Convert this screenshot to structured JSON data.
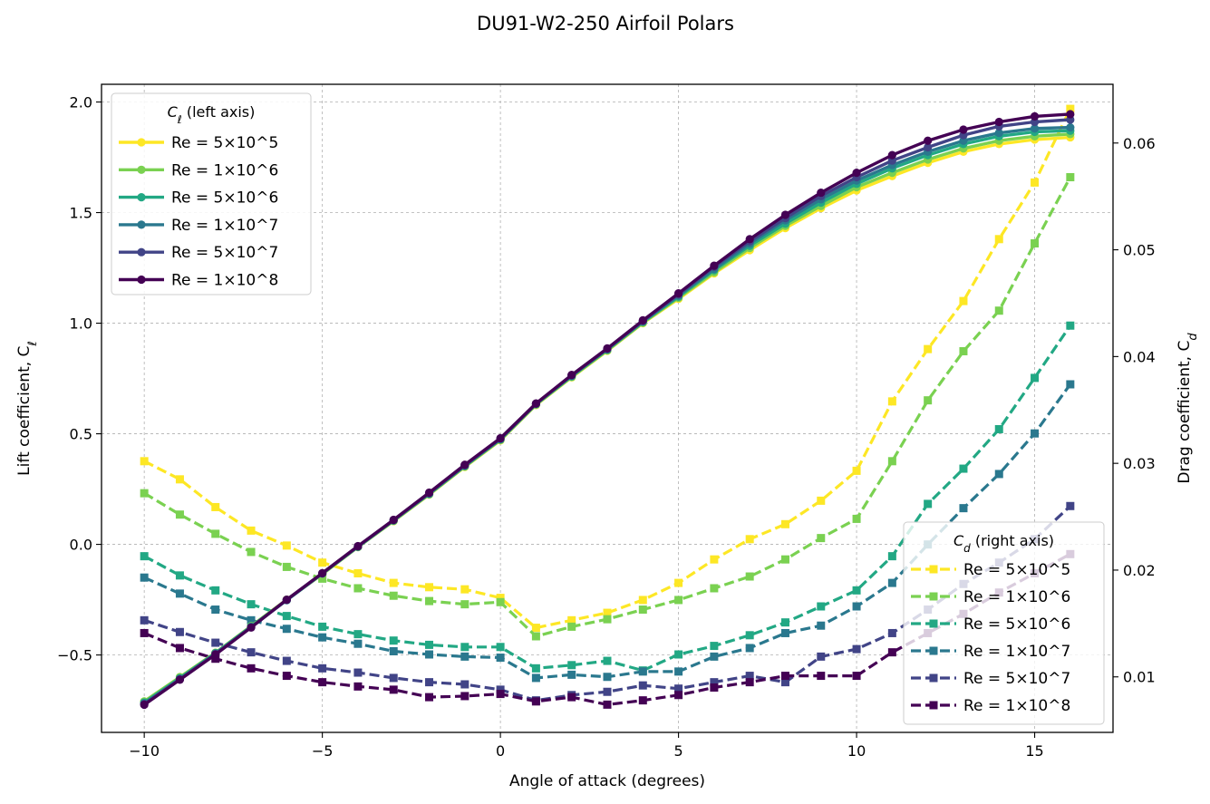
{
  "chart_data": {
    "type": "line",
    "title": "DU91-W2-250 Airfoil Polars",
    "xlabel": "Angle of attack (degrees)",
    "ylabel_left": "Lift coefficient, C",
    "ylabel_left_sub": "ℓ",
    "ylabel_right": "Drag coefficient, C",
    "ylabel_right_sub": "d",
    "xlim": [
      -11.2,
      17.2
    ],
    "ylim_left": [
      -0.85,
      2.08
    ],
    "ylim_right": [
      0.0048,
      0.0655
    ],
    "xticks": [
      -10,
      -5,
      0,
      5,
      10,
      15
    ],
    "xtick_labels": [
      "−10",
      "−5",
      "0",
      "5",
      "10",
      "15"
    ],
    "yticks_left": [
      -0.5,
      0.0,
      0.5,
      1.0,
      1.5,
      2.0
    ],
    "ytick_labels_left": [
      "−0.5",
      "0.0",
      "0.5",
      "1.0",
      "1.5",
      "2.0"
    ],
    "yticks_right": [
      0.01,
      0.02,
      0.03,
      0.04,
      0.05,
      0.06
    ],
    "ytick_labels_right": [
      "0.01",
      "0.02",
      "0.03",
      "0.04",
      "0.05",
      "0.06"
    ],
    "grid": true,
    "x": [
      -10,
      -9,
      -8,
      -7,
      -6,
      -5,
      -4,
      -3,
      -2,
      -1,
      0,
      1,
      2,
      3,
      4,
      5,
      6,
      7,
      8,
      9,
      10,
      11,
      12,
      13,
      14,
      15,
      16
    ],
    "legend_left": {
      "title": "C",
      "title_sub": "ℓ",
      "title_suffix": " (left axis)",
      "placement": "top-left"
    },
    "legend_right": {
      "title": "C",
      "title_sub": "d",
      "title_suffix": " (right axis)",
      "placement": "bottom-right"
    },
    "cl_series": [
      {
        "name": "Re = 5×10^5",
        "color": "#fde725",
        "values": [
          -0.71,
          -0.6,
          -0.49,
          -0.37,
          -0.25,
          -0.135,
          -0.012,
          0.105,
          0.225,
          0.35,
          0.47,
          0.63,
          0.755,
          0.875,
          1.0,
          1.11,
          1.225,
          1.33,
          1.43,
          1.52,
          1.6,
          1.665,
          1.725,
          1.775,
          1.81,
          1.83,
          1.84
        ]
      },
      {
        "name": "Re = 1×10^6",
        "color": "#7ad151",
        "values": [
          -0.71,
          -0.6,
          -0.49,
          -0.37,
          -0.25,
          -0.134,
          -0.012,
          0.106,
          0.226,
          0.352,
          0.472,
          0.632,
          0.757,
          0.877,
          1.002,
          1.115,
          1.23,
          1.34,
          1.44,
          1.53,
          1.615,
          1.68,
          1.74,
          1.79,
          1.825,
          1.845,
          1.855
        ]
      },
      {
        "name": "Re = 5×10^6",
        "color": "#22a884",
        "values": [
          -0.715,
          -0.605,
          -0.492,
          -0.372,
          -0.252,
          -0.133,
          -0.011,
          0.108,
          0.228,
          0.354,
          0.474,
          0.634,
          0.76,
          0.88,
          1.006,
          1.12,
          1.24,
          1.35,
          1.45,
          1.545,
          1.63,
          1.7,
          1.76,
          1.81,
          1.845,
          1.865,
          1.87
        ]
      },
      {
        "name": "Re = 1×10^7",
        "color": "#2a788e",
        "values": [
          -0.72,
          -0.608,
          -0.494,
          -0.374,
          -0.252,
          -0.132,
          -0.01,
          0.109,
          0.23,
          0.356,
          0.476,
          0.635,
          0.762,
          0.882,
          1.008,
          1.125,
          1.245,
          1.36,
          1.465,
          1.56,
          1.645,
          1.715,
          1.775,
          1.825,
          1.86,
          1.88,
          1.885
        ]
      },
      {
        "name": "Re = 5×10^7",
        "color": "#414487",
        "values": [
          -0.722,
          -0.61,
          -0.496,
          -0.375,
          -0.251,
          -0.131,
          -0.009,
          0.11,
          0.232,
          0.358,
          0.478,
          0.636,
          0.764,
          0.884,
          1.01,
          1.13,
          1.255,
          1.37,
          1.475,
          1.575,
          1.66,
          1.735,
          1.795,
          1.85,
          1.89,
          1.91,
          1.92
        ]
      },
      {
        "name": "Re = 1×10^8",
        "color": "#440154",
        "values": [
          -0.725,
          -0.612,
          -0.498,
          -0.376,
          -0.25,
          -0.13,
          -0.008,
          0.111,
          0.234,
          0.36,
          0.48,
          0.637,
          0.766,
          0.886,
          1.013,
          1.135,
          1.26,
          1.38,
          1.49,
          1.59,
          1.68,
          1.76,
          1.825,
          1.875,
          1.91,
          1.935,
          1.945
        ]
      }
    ],
    "cd_series": [
      {
        "name": "Re = 5×10^5",
        "color": "#fde725",
        "values": [
          0.0302,
          0.0285,
          0.0259,
          0.0237,
          0.0223,
          0.0207,
          0.0197,
          0.0188,
          0.0184,
          0.0182,
          0.0174,
          0.0146,
          0.0153,
          0.016,
          0.0172,
          0.0188,
          0.021,
          0.0229,
          0.0243,
          0.0265,
          0.0293,
          0.0358,
          0.0407,
          0.0452,
          0.051,
          0.0563,
          0.0632
        ]
      },
      {
        "name": "Re = 1×10^6",
        "color": "#7ad151",
        "values": [
          0.0272,
          0.0252,
          0.0234,
          0.0217,
          0.0203,
          0.0192,
          0.0183,
          0.0176,
          0.0171,
          0.0168,
          0.017,
          0.0138,
          0.0147,
          0.0154,
          0.0163,
          0.0172,
          0.0183,
          0.0194,
          0.021,
          0.023,
          0.0248,
          0.0302,
          0.0359,
          0.0405,
          0.0443,
          0.0506,
          0.0568
        ]
      },
      {
        "name": "Re = 5×10^6",
        "color": "#22a884",
        "values": [
          0.0213,
          0.0195,
          0.0181,
          0.0168,
          0.0157,
          0.0147,
          0.014,
          0.0134,
          0.013,
          0.0128,
          0.0128,
          0.0108,
          0.0111,
          0.0115,
          0.0106,
          0.0121,
          0.0129,
          0.0139,
          0.0151,
          0.0166,
          0.0181,
          0.0213,
          0.0262,
          0.0295,
          0.0332,
          0.038,
          0.0429
        ]
      },
      {
        "name": "Re = 1×10^7",
        "color": "#2a788e",
        "values": [
          0.0193,
          0.0178,
          0.0163,
          0.0153,
          0.0145,
          0.0137,
          0.0131,
          0.0124,
          0.0121,
          0.0119,
          0.0118,
          0.0099,
          0.0102,
          0.01,
          0.0105,
          0.0105,
          0.0119,
          0.0127,
          0.0141,
          0.0148,
          0.0166,
          0.0188,
          0.0224,
          0.0258,
          0.029,
          0.0328,
          0.0374
        ]
      },
      {
        "name": "Re = 5×10^7",
        "color": "#414487",
        "values": [
          0.0153,
          0.0142,
          0.0132,
          0.0123,
          0.0115,
          0.0108,
          0.0104,
          0.0099,
          0.0095,
          0.0093,
          0.0088,
          0.0078,
          0.0083,
          0.0086,
          0.0092,
          0.0089,
          0.0095,
          0.0101,
          0.0095,
          0.0119,
          0.0126,
          0.0141,
          0.0163,
          0.0187,
          0.0207,
          0.0229,
          0.026
        ]
      },
      {
        "name": "Re = 1×10^8",
        "color": "#440154",
        "values": [
          0.0141,
          0.0127,
          0.0117,
          0.0108,
          0.0101,
          0.0095,
          0.0091,
          0.0088,
          0.0081,
          0.0082,
          0.0084,
          0.0077,
          0.0081,
          0.0074,
          0.0078,
          0.0083,
          0.009,
          0.0095,
          0.0101,
          0.0101,
          0.0101,
          0.0123,
          0.0141,
          0.0159,
          0.0179,
          0.0197,
          0.0215
        ]
      }
    ]
  }
}
